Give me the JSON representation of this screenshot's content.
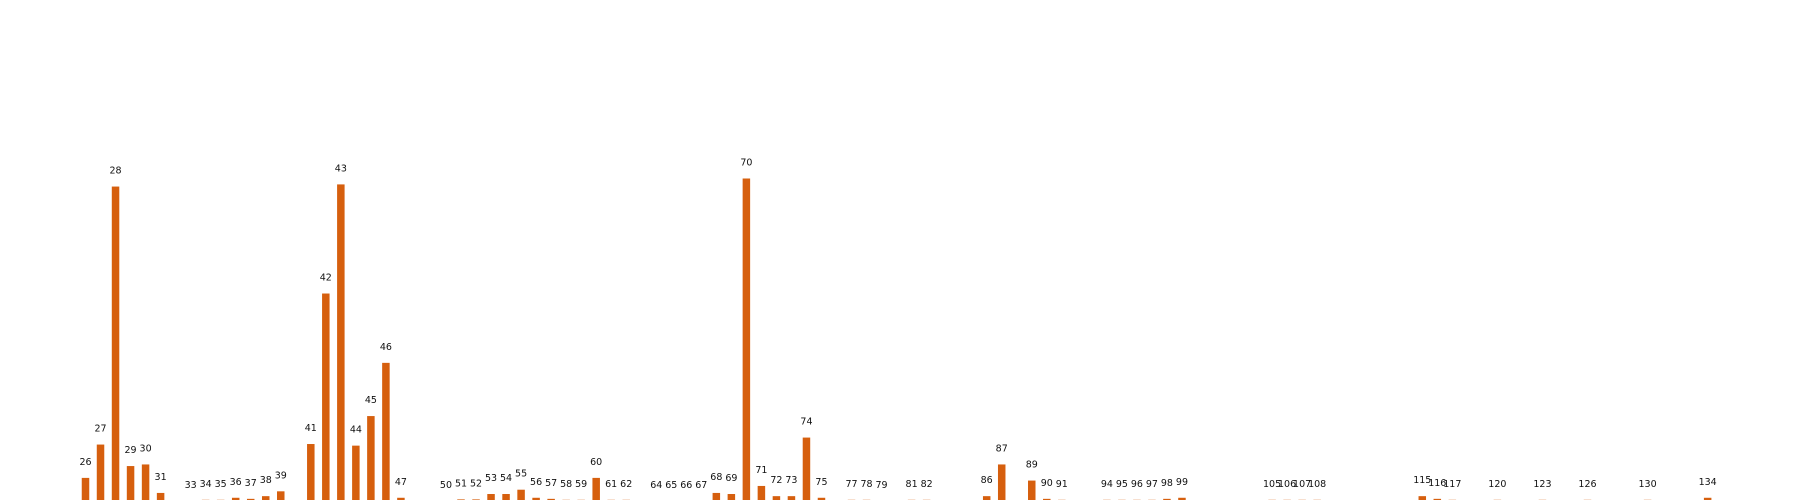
{
  "chart_data": {
    "type": "bar",
    "title": "",
    "xlabel": "",
    "ylabel": "",
    "grid": false,
    "bar_color": "#d65f0e",
    "ylim": [
      0,
      90
    ],
    "categories": [
      "26",
      "27",
      "28",
      "29",
      "30",
      "31",
      "33",
      "34",
      "35",
      "36",
      "37",
      "38",
      "39",
      "41",
      "42",
      "43",
      "44",
      "45",
      "46",
      "47",
      "50",
      "51",
      "52",
      "53",
      "54",
      "55",
      "56",
      "57",
      "58",
      "59",
      "60",
      "61",
      "62",
      "64",
      "65",
      "66",
      "67",
      "68",
      "69",
      "70",
      "71",
      "72",
      "73",
      "74",
      "75",
      "77",
      "78",
      "79",
      "81",
      "82",
      "86",
      "87",
      "89",
      "90",
      "91",
      "94",
      "95",
      "96",
      "97",
      "98",
      "99",
      "105",
      "106",
      "107",
      "108",
      "115",
      "116",
      "117",
      "120",
      "123",
      "126",
      "130",
      "134"
    ],
    "x": [
      26,
      27,
      28,
      29,
      30,
      31,
      33,
      34,
      35,
      36,
      37,
      38,
      39,
      41,
      42,
      43,
      44,
      45,
      46,
      47,
      50,
      51,
      52,
      53,
      54,
      55,
      56,
      57,
      58,
      59,
      60,
      61,
      62,
      64,
      65,
      66,
      67,
      68,
      69,
      70,
      71,
      72,
      73,
      74,
      75,
      77,
      78,
      79,
      81,
      82,
      86,
      87,
      89,
      90,
      91,
      94,
      95,
      96,
      97,
      98,
      99,
      105,
      106,
      107,
      108,
      115,
      116,
      117,
      120,
      123,
      126,
      130,
      134
    ],
    "values": [
      4.3,
      10.5,
      58.5,
      6.5,
      6.8,
      1.5,
      0,
      0.2,
      0.2,
      0.6,
      0.4,
      0.9,
      1.8,
      10.6,
      38.6,
      58.9,
      10.3,
      15.8,
      25.7,
      0.6,
      0,
      0.3,
      0.3,
      1.3,
      1.3,
      2.1,
      0.6,
      0.4,
      0.2,
      0.2,
      4.3,
      0.2,
      0.2,
      0,
      0,
      0,
      0,
      1.5,
      1.3,
      60.0,
      2.8,
      0.9,
      0.9,
      11.8,
      0.6,
      0.2,
      0.2,
      0,
      0.2,
      0.2,
      0.9,
      6.8,
      3.8,
      0.4,
      0.2,
      0.2,
      0.2,
      0.2,
      0.2,
      0.4,
      0.6,
      0.2,
      0.2,
      0.2,
      0.2,
      0.9,
      0.4,
      0.2,
      0.2,
      0.2,
      0.2,
      0.2,
      0.6
    ]
  }
}
